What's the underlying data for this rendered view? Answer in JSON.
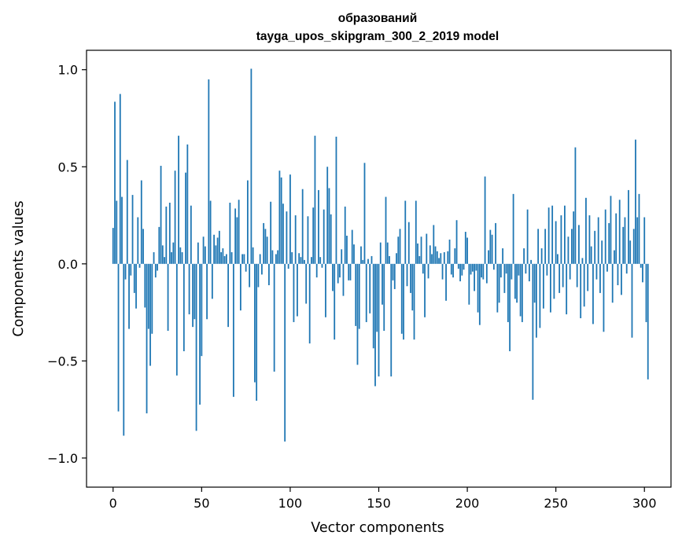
{
  "chart_data": {
    "type": "bar",
    "title_line1": "образований",
    "title_line2": "tayga_upos_skipgram_300_2_2019 model",
    "xlabel": "Vector components",
    "ylabel": "Components values",
    "xlim": [
      -15,
      315
    ],
    "ylim": [
      -1.15,
      1.1
    ],
    "x_ticks": [
      0,
      50,
      100,
      150,
      200,
      250,
      300
    ],
    "x_tick_labels": [
      "0",
      "50",
      "100",
      "150",
      "200",
      "250",
      "300"
    ],
    "y_ticks": [
      1.0,
      0.5,
      0.0,
      -0.5,
      -1.0
    ],
    "y_tick_labels": [
      "1.0",
      "0.5",
      "0.0",
      "−0.5",
      "−1.0"
    ],
    "bar_color": "#1f77b4",
    "values": [
      0.185,
      0.835,
      0.325,
      -0.76,
      0.875,
      0.345,
      -0.885,
      -0.08,
      0.535,
      -0.335,
      -0.06,
      0.355,
      -0.15,
      -0.23,
      0.24,
      -0.02,
      0.43,
      0.18,
      -0.225,
      -0.77,
      -0.335,
      -0.525,
      -0.36,
      0.06,
      -0.07,
      -0.035,
      0.19,
      0.505,
      0.095,
      0.035,
      0.295,
      -0.345,
      0.315,
      0.06,
      0.11,
      0.48,
      -0.575,
      0.66,
      0.085,
      0.06,
      -0.45,
      0.47,
      0.615,
      -0.26,
      0.3,
      -0.325,
      -0.285,
      -0.86,
      0.11,
      -0.725,
      -0.475,
      0.14,
      0.09,
      -0.285,
      0.95,
      0.325,
      -0.18,
      0.15,
      0.095,
      0.135,
      0.17,
      0.06,
      0.08,
      0.04,
      0.05,
      -0.325,
      0.315,
      0.06,
      -0.685,
      0.285,
      0.24,
      0.33,
      -0.24,
      0.05,
      0.05,
      -0.04,
      0.43,
      -0.12,
      1.005,
      0.085,
      -0.61,
      -0.705,
      -0.12,
      0.05,
      -0.055,
      0.21,
      0.18,
      0.14,
      -0.11,
      0.32,
      0.07,
      -0.555,
      0.05,
      0.07,
      0.48,
      0.445,
      0.31,
      -0.915,
      0.27,
      -0.025,
      0.46,
      0.06,
      -0.3,
      0.25,
      -0.27,
      0.055,
      0.035,
      0.385,
      0.02,
      -0.205,
      0.245,
      -0.41,
      0.035,
      0.29,
      0.66,
      -0.07,
      0.38,
      0.035,
      -0.02,
      0.28,
      -0.275,
      0.5,
      0.39,
      0.255,
      -0.14,
      -0.39,
      0.655,
      -0.1,
      -0.07,
      0.075,
      -0.165,
      0.295,
      0.145,
      -0.085,
      -0.085,
      0.175,
      0.1,
      -0.32,
      -0.52,
      -0.335,
      0.09,
      0.02,
      0.52,
      -0.3,
      0.025,
      -0.255,
      0.04,
      -0.435,
      -0.63,
      -0.35,
      -0.58,
      0.11,
      -0.21,
      -0.345,
      0.345,
      0.11,
      0.04,
      -0.58,
      -0.085,
      -0.13,
      0.055,
      0.14,
      0.18,
      -0.36,
      -0.39,
      0.325,
      -0.115,
      0.215,
      -0.15,
      -0.24,
      -0.39,
      0.325,
      0.105,
      0.04,
      0.14,
      -0.05,
      -0.275,
      0.155,
      -0.075,
      0.095,
      0.05,
      0.2,
      0.09,
      0.065,
      0.03,
      0.055,
      -0.08,
      0.06,
      -0.19,
      0.065,
      0.125,
      -0.055,
      -0.07,
      0.08,
      0.225,
      -0.025,
      -0.09,
      -0.06,
      -0.03,
      0.165,
      0.135,
      -0.21,
      -0.055,
      -0.04,
      -0.14,
      -0.035,
      -0.25,
      -0.315,
      -0.07,
      -0.08,
      0.45,
      -0.1,
      0.07,
      0.175,
      0.15,
      -0.03,
      0.21,
      -0.25,
      -0.2,
      -0.07,
      0.08,
      -0.15,
      -0.05,
      -0.3,
      -0.45,
      -0.08,
      0.36,
      -0.18,
      -0.2,
      -0.06,
      -0.27,
      -0.3,
      0.08,
      -0.05,
      0.28,
      -0.09,
      0.02,
      -0.7,
      -0.2,
      -0.38,
      0.18,
      -0.33,
      0.08,
      -0.23,
      0.18,
      -0.06,
      0.29,
      -0.25,
      0.3,
      -0.18,
      0.22,
      0.05,
      -0.15,
      0.25,
      -0.12,
      0.3,
      -0.26,
      0.14,
      -0.08,
      0.18,
      0.27,
      0.6,
      -0.12,
      0.2,
      -0.28,
      0.03,
      -0.22,
      0.34,
      -0.14,
      0.25,
      0.09,
      -0.31,
      0.17,
      -0.08,
      0.24,
      -0.15,
      0.12,
      -0.35,
      0.28,
      -0.04,
      0.21,
      0.35,
      -0.2,
      0.07,
      0.26,
      -0.11,
      0.33,
      -0.16,
      0.19,
      0.24,
      -0.05,
      0.38,
      0.12,
      -0.38,
      0.18,
      0.64,
      0.24,
      0.36,
      -0.02,
      -0.095,
      0.24,
      -0.3,
      -0.595
    ]
  }
}
